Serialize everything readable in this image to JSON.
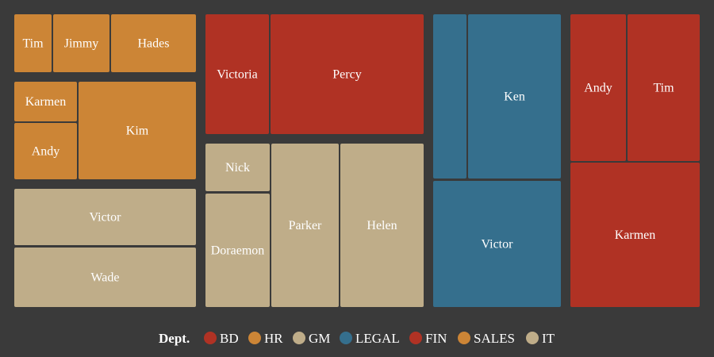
{
  "chart_data": {
    "type": "treemap",
    "legend": {
      "title": "Dept.",
      "placement": "bottom-center",
      "entries": [
        {
          "label": "BD",
          "color": "#b03224"
        },
        {
          "label": "HR",
          "color": "#cc8536"
        },
        {
          "label": "GM",
          "color": "#bfad89"
        },
        {
          "label": "LEGAL",
          "color": "#356f8d"
        },
        {
          "label": "FIN",
          "color": "#b03224"
        },
        {
          "label": "SALES",
          "color": "#cc8536"
        },
        {
          "label": "IT",
          "color": "#bfad89"
        }
      ]
    },
    "cells": [
      {
        "label": "Tim",
        "color": "#cc8536"
      },
      {
        "label": "Jimmy",
        "color": "#cc8536"
      },
      {
        "label": "Hades",
        "color": "#cc8536"
      },
      {
        "label": "Karmen",
        "color": "#cc8536"
      },
      {
        "label": "Andy",
        "color": "#cc8536"
      },
      {
        "label": "Kim",
        "color": "#cc8536"
      },
      {
        "label": "Victor",
        "color": "#bfad89"
      },
      {
        "label": "Wade",
        "color": "#bfad89"
      },
      {
        "label": "Victoria",
        "color": "#b03224"
      },
      {
        "label": "Percy",
        "color": "#b03224"
      },
      {
        "label": "Nick",
        "color": "#bfad89"
      },
      {
        "label": "Doraemon",
        "color": "#bfad89"
      },
      {
        "label": "Parker",
        "color": "#bfad89"
      },
      {
        "label": "Helen",
        "color": "#bfad89"
      },
      {
        "label": "",
        "color": "#356f8d"
      },
      {
        "label": "Ken",
        "color": "#356f8d"
      },
      {
        "label": "Victor",
        "color": "#356f8d"
      },
      {
        "label": "Andy",
        "color": "#b03224"
      },
      {
        "label": "Tim",
        "color": "#b03224"
      },
      {
        "label": "Karmen",
        "color": "#b03224"
      }
    ]
  }
}
